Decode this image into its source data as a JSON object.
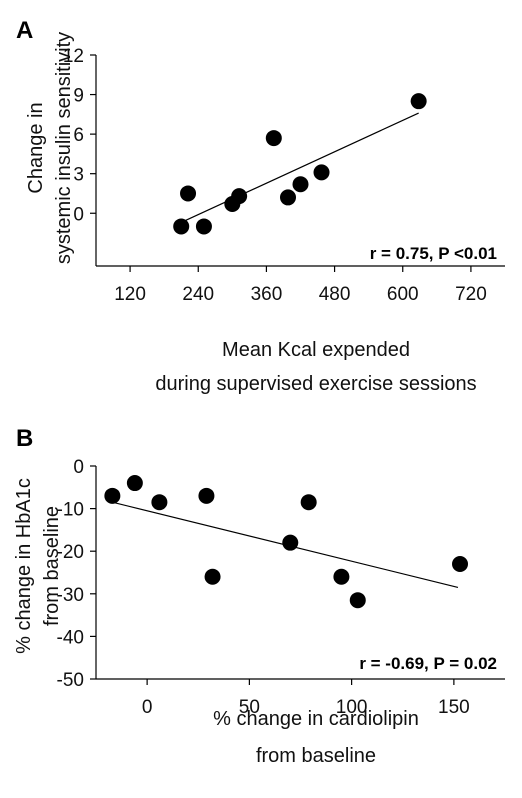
{
  "chart_data": [
    {
      "panel": "A",
      "type": "scatter",
      "xlabel": [
        "Mean Kcal expended",
        "during supervised exercise sessions"
      ],
      "ylabel": [
        "Change in",
        "systemic insulin sensitivity"
      ],
      "xlim": [
        60,
        780
      ],
      "ylim": [
        -4,
        12
      ],
      "xticks": [
        120,
        240,
        360,
        480,
        600,
        720
      ],
      "yticks": [
        0,
        3,
        6,
        9,
        12
      ],
      "points": [
        {
          "x": 210,
          "y": -1.0
        },
        {
          "x": 222,
          "y": 1.5
        },
        {
          "x": 250,
          "y": -1.0
        },
        {
          "x": 300,
          "y": 0.7
        },
        {
          "x": 312,
          "y": 1.3
        },
        {
          "x": 373,
          "y": 5.7
        },
        {
          "x": 398,
          "y": 1.2
        },
        {
          "x": 420,
          "y": 2.2
        },
        {
          "x": 457,
          "y": 3.1
        },
        {
          "x": 628,
          "y": 8.5
        }
      ],
      "fit_line": {
        "x": [
          210,
          628
        ],
        "y": [
          -0.7,
          7.6
        ]
      },
      "annotation": "r = 0.75, P <0.01",
      "grid": false
    },
    {
      "panel": "B",
      "type": "scatter",
      "xlabel": [
        "% change in cardiolipin",
        "from baseline"
      ],
      "ylabel": [
        "% change in HbA1c",
        "from baseline"
      ],
      "xlim": [
        -25,
        175
      ],
      "ylim": [
        -50,
        0
      ],
      "xticks": [
        0,
        50,
        100,
        150
      ],
      "yticks": [
        0,
        -10,
        -20,
        -30,
        -40,
        -50
      ],
      "points": [
        {
          "x": -17,
          "y": -7
        },
        {
          "x": -6,
          "y": -4
        },
        {
          "x": 6,
          "y": -8.5
        },
        {
          "x": 29,
          "y": -7
        },
        {
          "x": 32,
          "y": -26
        },
        {
          "x": 70,
          "y": -18
        },
        {
          "x": 79,
          "y": -8.5
        },
        {
          "x": 95,
          "y": -26
        },
        {
          "x": 103,
          "y": -31.5
        },
        {
          "x": 153,
          "y": -23
        }
      ],
      "fit_line": {
        "x": [
          -17,
          152
        ],
        "y": [
          -8.5,
          -28.5
        ]
      },
      "annotation": "r = -0.69, P = 0.02",
      "grid": false
    }
  ],
  "colors": {
    "points": "#000000",
    "axes": "#000000",
    "background": "#ffffff"
  }
}
